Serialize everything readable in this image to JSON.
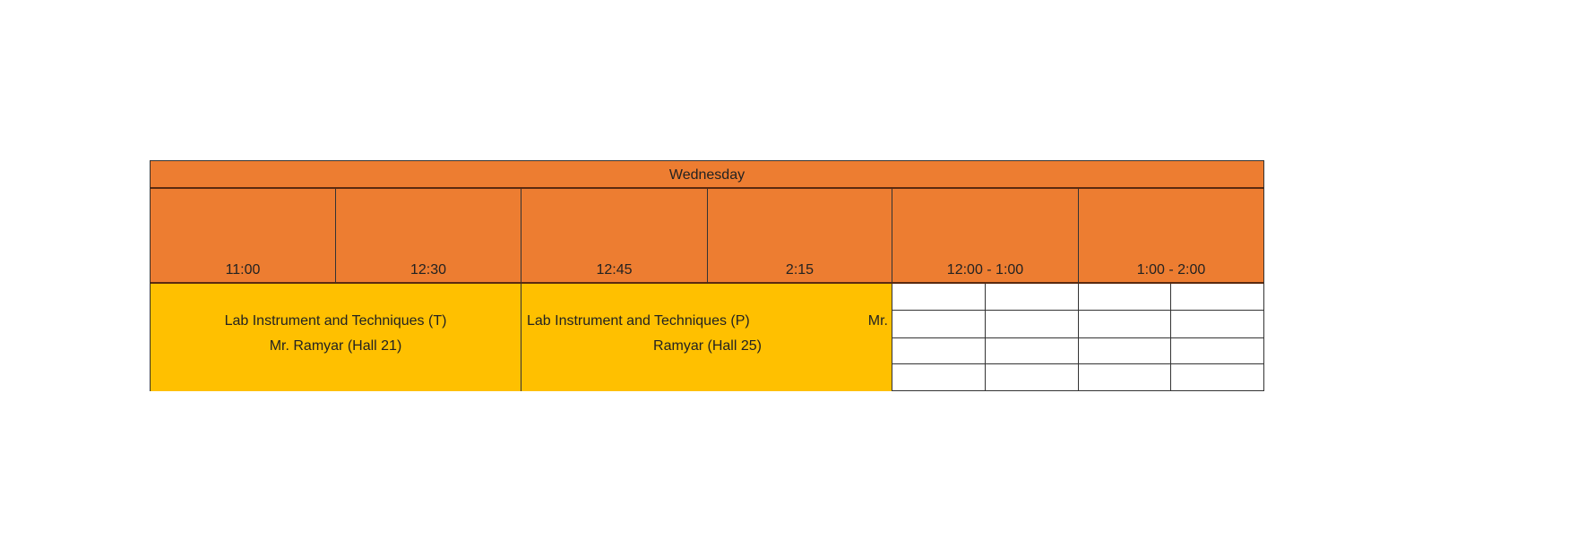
{
  "day": "Wednesday",
  "times": [
    "11:00",
    "12:30",
    "12:45",
    "2:15",
    "12:00 - 1:00",
    "1:00 - 2:00"
  ],
  "courses": [
    {
      "line1": "Lab Instrument and Techniques  (T)",
      "line2": "Mr. Ramyar (Hall 21)"
    },
    {
      "line1": "Lab Instrument and Techniques  (P)",
      "line1_end": "Mr.",
      "line2": "Ramyar (Hall 25)"
    }
  ],
  "colors": {
    "header": "#ED7D31",
    "course": "#FFC000"
  }
}
